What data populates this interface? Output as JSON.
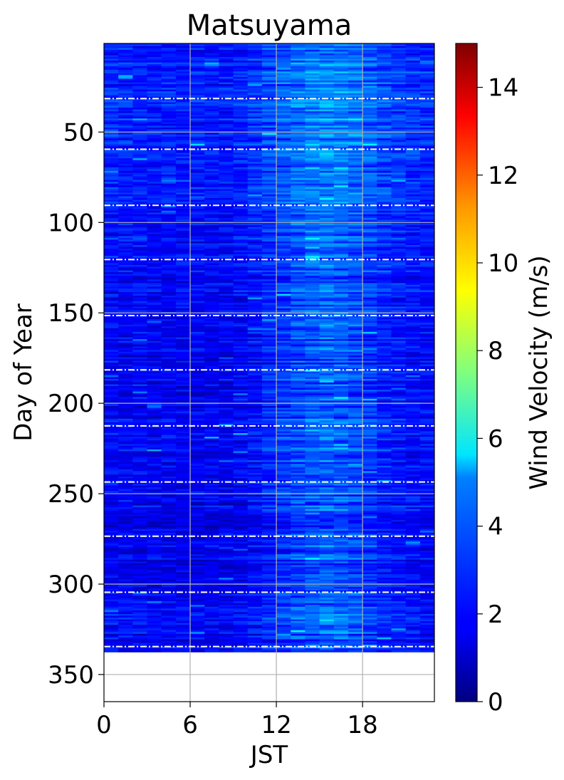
{
  "chart_data": {
    "type": "heatmap",
    "title": "Matsuyama",
    "xlabel": "JST",
    "ylabel": "Day of Year",
    "colorbar_label": "Wind Velocity (m/s)",
    "colormap": "jet",
    "x_ticks": [
      0,
      6,
      12,
      18
    ],
    "x_tick_labels": [
      "0",
      "6",
      "12",
      "18"
    ],
    "xlim": [
      0,
      23
    ],
    "y_ticks": [
      50,
      100,
      150,
      200,
      250,
      300,
      350
    ],
    "y_tick_labels": [
      "50",
      "100",
      "150",
      "200",
      "250",
      "300",
      "350"
    ],
    "ylim": [
      365,
      1
    ],
    "y_inverted": true,
    "colorbar_ticks": [
      0,
      2,
      4,
      6,
      8,
      10,
      12,
      14
    ],
    "colorbar_tick_labels": [
      "0",
      "2",
      "4",
      "6",
      "8",
      "10",
      "12",
      "14"
    ],
    "clim": [
      0,
      15
    ],
    "grid": true,
    "data_last_day": 337,
    "month_boundary_days": [
      32,
      60,
      91,
      121,
      152,
      182,
      213,
      244,
      274,
      305,
      335
    ],
    "hours": [
      0,
      1,
      2,
      3,
      4,
      5,
      6,
      7,
      8,
      9,
      10,
      11,
      12,
      13,
      14,
      15,
      16,
      17,
      18,
      19,
      20,
      21,
      22
    ],
    "mean_velocity_by_hour": [
      1.8,
      1.7,
      1.7,
      1.6,
      1.6,
      1.6,
      1.6,
      1.6,
      1.6,
      1.7,
      1.9,
      2.2,
      2.5,
      2.8,
      3.0,
      3.1,
      3.0,
      2.8,
      2.5,
      2.2,
      2.0,
      1.9,
      1.8
    ],
    "seasonal_offset_by_month": [
      0.5,
      0.6,
      0.6,
      0.3,
      0.1,
      -0.1,
      0.0,
      0.1,
      0.0,
      -0.1,
      0.0,
      0.4
    ],
    "max_observed_velocity": 5.5
  }
}
